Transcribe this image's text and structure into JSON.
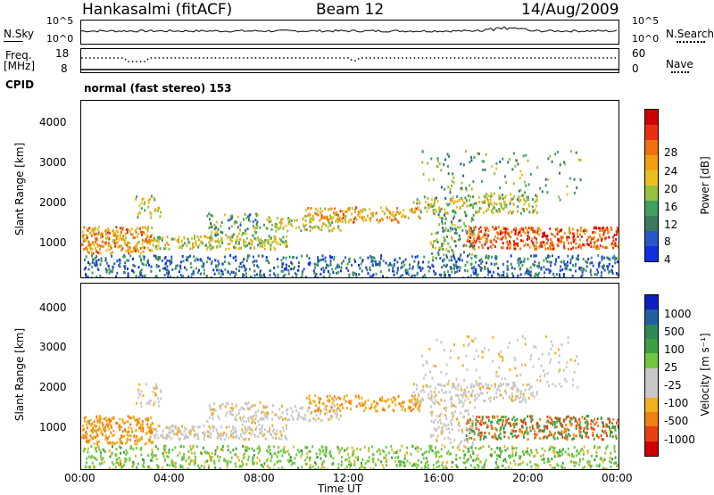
{
  "header": {
    "title": "Hankasalmi (fitACF)",
    "beam": "Beam 12",
    "date": "14/Aug/2009"
  },
  "top_panels": {
    "nsky_label": "N.Sky",
    "nsky_ticks": [
      "10^5",
      "10^0"
    ],
    "nsearch_label": "N.Search",
    "nsearch_ticks": [
      "10^5",
      "10^0"
    ],
    "freq_label_line1": "Freq.",
    "freq_label_line2": "[MHz]",
    "freq_ticks": [
      "18",
      "8"
    ],
    "nave_label": "Nave",
    "nave_ticks": [
      "60",
      "0"
    ],
    "cpid_label": "CPID",
    "cpid_text": "normal (fast stereo) 153"
  },
  "colors": {
    "power_scale": [
      "#1030e0",
      "#2858c8",
      "#3c7a60",
      "#3fa060",
      "#98c040",
      "#e8c020",
      "#f0a010",
      "#f07010",
      "#e83010",
      "#d00000"
    ],
    "velocity_scale": [
      "#1020c0",
      "#2060a0",
      "#2f8a5a",
      "#3aa040",
      "#70c840",
      "#c8c8c8",
      "#c8c8c8",
      "#f0b020",
      "#f08010",
      "#e84010",
      "#d00000"
    ]
  },
  "chart_data": [
    {
      "type": "heatmap",
      "title": "Power",
      "xlabel": "",
      "ylabel": "Slant Range [km]",
      "x_ticks": [
        "00:00",
        "04:00",
        "08:00",
        "12:00",
        "16:00",
        "20:00",
        "00:00"
      ],
      "y_ticks": [
        "4000",
        "3000",
        "2000",
        "1000"
      ],
      "ylim": [
        180,
        4600
      ],
      "colorbar": {
        "label": "Power [dB]",
        "ticks": [
          "28",
          "24",
          "20",
          "16",
          "12",
          "8",
          "4"
        ]
      }
    },
    {
      "type": "heatmap",
      "title": "Velocity",
      "xlabel": "Time UT",
      "ylabel": "Slant Range [km]",
      "x_ticks": [
        "00:00",
        "04:00",
        "08:00",
        "12:00",
        "16:00",
        "20:00",
        "00:00"
      ],
      "y_ticks": [
        "4000",
        "3000",
        "2000",
        "1000"
      ],
      "ylim": [
        180,
        4600
      ],
      "colorbar": {
        "label": "Velocity [m s⁻¹]",
        "ticks": [
          "1000",
          "500",
          "100",
          "25",
          "-25",
          "-100",
          "-500",
          "-1000"
        ]
      }
    }
  ]
}
